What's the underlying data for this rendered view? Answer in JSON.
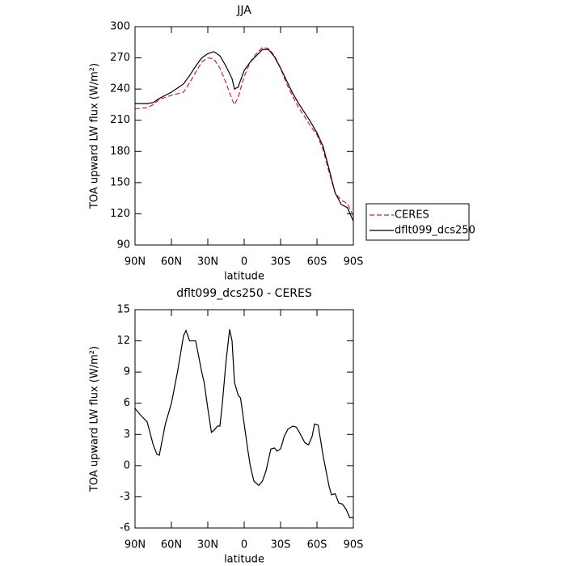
{
  "chart_data": [
    {
      "type": "line",
      "title": "JJA",
      "xlabel": "latitude",
      "ylabel": "TOA upward LW flux (W/m²)",
      "xlim": [
        90,
        -90
      ],
      "xticks": [
        {
          "value": 90,
          "label": "90N"
        },
        {
          "value": 60,
          "label": "60N"
        },
        {
          "value": 30,
          "label": "30N"
        },
        0,
        {
          "value": -30,
          "label": "30S"
        },
        {
          "value": -60,
          "label": "60S"
        },
        {
          "value": -90,
          "label": "90S"
        }
      ],
      "ylim": [
        90,
        300
      ],
      "yticks": [
        90,
        120,
        150,
        180,
        210,
        240,
        270,
        300
      ],
      "x": [
        90,
        80,
        75,
        70,
        60,
        50,
        45,
        40,
        35,
        30,
        25,
        20,
        15,
        10,
        8,
        5,
        0,
        -5,
        -10,
        -15,
        -20,
        -25,
        -30,
        -35,
        -40,
        -45,
        -50,
        -55,
        -60,
        -65,
        -70,
        -75,
        -80,
        -85,
        -90
      ],
      "series": [
        {
          "name": "CERES",
          "color": "#e8191e",
          "dash": true,
          "values": [
            221,
            222,
            225,
            230,
            234,
            237,
            246,
            256,
            266,
            270,
            269,
            260,
            246,
            230,
            225,
            232,
            252,
            266,
            274,
            280,
            279,
            272,
            260,
            245,
            233,
            222,
            213,
            204,
            196,
            182,
            160,
            140,
            133,
            130,
            118
          ]
        },
        {
          "name": "dflt099_dcs250",
          "color": "#000000",
          "dash": false,
          "values": [
            226,
            226,
            227,
            231,
            237,
            245,
            253,
            262,
            270,
            274,
            276,
            272,
            262,
            250,
            240,
            242,
            258,
            266,
            272,
            278,
            278,
            271,
            260,
            248,
            236,
            226,
            217,
            208,
            198,
            185,
            163,
            140,
            129,
            126,
            113
          ]
        }
      ],
      "legend": "right"
    },
    {
      "type": "line",
      "title": "dflt099_dcs250 - CERES",
      "xlabel": "latitude",
      "ylabel": "TOA upward LW flux (W/m²)",
      "xlim": [
        90,
        -90
      ],
      "xticks": [
        {
          "value": 90,
          "label": "90N"
        },
        {
          "value": 60,
          "label": "60N"
        },
        {
          "value": 30,
          "label": "30N"
        },
        0,
        {
          "value": -30,
          "label": "30S"
        },
        {
          "value": -60,
          "label": "60S"
        },
        {
          "value": -90,
          "label": "90S"
        }
      ],
      "ylim": [
        -6,
        15
      ],
      "yticks": [
        -6,
        -3,
        0,
        3,
        6,
        9,
        12,
        15
      ],
      "x": [
        90,
        85,
        80,
        75,
        72,
        70,
        65,
        60,
        55,
        50,
        48,
        45,
        40,
        35,
        33,
        30,
        27,
        25,
        22,
        20,
        18,
        15,
        12,
        10,
        8,
        5,
        3,
        0,
        -3,
        -5,
        -8,
        -12,
        -15,
        -18,
        -22,
        -25,
        -27,
        -30,
        -33,
        -36,
        -40,
        -43,
        -46,
        -50,
        -53,
        -56,
        -58,
        -61,
        -65,
        -70,
        -72,
        -75,
        -78,
        -81,
        -84,
        -87,
        -90
      ],
      "series": [
        {
          "color": "#000000",
          "dash": false,
          "values": [
            5.5,
            4.8,
            4.2,
            2,
            1.1,
            1.0,
            4,
            6,
            9,
            12.5,
            13,
            12,
            12,
            9,
            8,
            5.5,
            3.2,
            3.4,
            3.8,
            3.8,
            6,
            10,
            13.1,
            12,
            8,
            6.8,
            6.5,
            4,
            1.5,
            0,
            -1.5,
            -1.9,
            -1.5,
            -0.5,
            1.6,
            1.7,
            1.4,
            1.6,
            2.8,
            3.5,
            3.8,
            3.7,
            3.1,
            2.2,
            2.0,
            2.8,
            4.0,
            3.9,
            1.0,
            -2,
            -2.8,
            -2.7,
            -3.6,
            -3.7,
            -4.2,
            -5,
            -5
          ]
        }
      ]
    }
  ]
}
